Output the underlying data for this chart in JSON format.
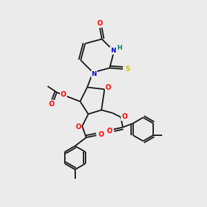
{
  "bg_color": "#ebebeb",
  "bond_color": "#1a1a1a",
  "atom_colors": {
    "O": "#ff0000",
    "N": "#0000cc",
    "S": "#cccc00",
    "H": "#008080",
    "C": "#1a1a1a"
  },
  "figsize": [
    3.0,
    3.0
  ],
  "dpi": 100
}
